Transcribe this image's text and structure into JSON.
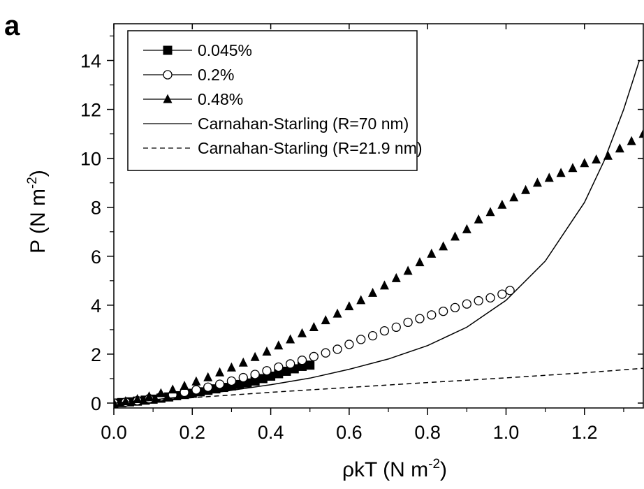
{
  "chart_data": {
    "type": "scatter",
    "panel_label": "a",
    "xlabel": {
      "base": "ρkT (N m",
      "sup": "-2",
      "tail": ")"
    },
    "ylabel": {
      "base": "P (N m",
      "sup": "-2",
      "tail": ")"
    },
    "xlim": [
      0.0,
      1.35
    ],
    "ylim": [
      -0.2,
      15.5
    ],
    "xticks": [
      0.0,
      0.2,
      0.4,
      0.6,
      0.8,
      1.0,
      1.2
    ],
    "xtick_labels": [
      "0.0",
      "0.2",
      "0.4",
      "0.6",
      "0.8",
      "1.0",
      "1.2"
    ],
    "yticks": [
      0,
      2,
      4,
      6,
      8,
      10,
      12,
      14
    ],
    "ytick_labels": [
      "0",
      "2",
      "4",
      "6",
      "8",
      "10",
      "12",
      "14"
    ],
    "grid": false,
    "legend_position": "top-left",
    "series": [
      {
        "name": "0.045%",
        "kind": "markers",
        "marker": "square-filled",
        "x": [
          0.0,
          0.02,
          0.04,
          0.06,
          0.08,
          0.1,
          0.12,
          0.14,
          0.16,
          0.18,
          0.2,
          0.22,
          0.24,
          0.26,
          0.28,
          0.3,
          0.32,
          0.34,
          0.36,
          0.38,
          0.4,
          0.42,
          0.44,
          0.46,
          0.48,
          0.5
        ],
        "y": [
          0.0,
          0.02,
          0.05,
          0.08,
          0.12,
          0.16,
          0.2,
          0.25,
          0.3,
          0.35,
          0.4,
          0.46,
          0.52,
          0.58,
          0.64,
          0.7,
          0.76,
          0.82,
          0.9,
          1.0,
          1.1,
          1.2,
          1.3,
          1.4,
          1.5,
          1.55
        ]
      },
      {
        "name": "0.2%",
        "kind": "markers",
        "marker": "circle-open",
        "x": [
          0.0,
          0.03,
          0.06,
          0.09,
          0.12,
          0.15,
          0.18,
          0.21,
          0.24,
          0.27,
          0.3,
          0.33,
          0.36,
          0.39,
          0.42,
          0.45,
          0.48,
          0.51,
          0.54,
          0.57,
          0.6,
          0.63,
          0.66,
          0.69,
          0.72,
          0.75,
          0.78,
          0.81,
          0.84,
          0.87,
          0.9,
          0.93,
          0.96,
          0.99,
          1.01
        ],
        "y": [
          0.0,
          0.04,
          0.1,
          0.18,
          0.26,
          0.34,
          0.44,
          0.54,
          0.65,
          0.77,
          0.9,
          1.04,
          1.17,
          1.32,
          1.47,
          1.6,
          1.75,
          1.9,
          2.05,
          2.2,
          2.4,
          2.6,
          2.75,
          2.95,
          3.1,
          3.3,
          3.45,
          3.6,
          3.75,
          3.9,
          4.05,
          4.18,
          4.3,
          4.45,
          4.6
        ]
      },
      {
        "name": "0.48%",
        "kind": "markers",
        "marker": "triangle-filled",
        "x": [
          0.0,
          0.03,
          0.06,
          0.09,
          0.12,
          0.15,
          0.18,
          0.21,
          0.24,
          0.27,
          0.3,
          0.33,
          0.36,
          0.39,
          0.42,
          0.45,
          0.48,
          0.51,
          0.54,
          0.57,
          0.6,
          0.63,
          0.66,
          0.69,
          0.72,
          0.75,
          0.78,
          0.81,
          0.84,
          0.87,
          0.9,
          0.93,
          0.96,
          0.99,
          1.02,
          1.05,
          1.08,
          1.11,
          1.14,
          1.17,
          1.2,
          1.23,
          1.26,
          1.29,
          1.32,
          1.35
        ],
        "y": [
          0.0,
          0.07,
          0.16,
          0.27,
          0.4,
          0.55,
          0.7,
          0.88,
          1.05,
          1.25,
          1.45,
          1.65,
          1.88,
          2.1,
          2.35,
          2.6,
          2.85,
          3.1,
          3.38,
          3.65,
          3.95,
          4.2,
          4.5,
          4.8,
          5.1,
          5.4,
          5.75,
          6.1,
          6.4,
          6.8,
          7.1,
          7.5,
          7.8,
          8.1,
          8.4,
          8.7,
          9.0,
          9.2,
          9.4,
          9.6,
          9.8,
          9.95,
          10.1,
          10.4,
          10.7,
          11.0
        ]
      },
      {
        "name": "Carnahan-Starling (R=70 nm)",
        "kind": "line",
        "dash": "solid",
        "x": [
          0.0,
          0.1,
          0.2,
          0.3,
          0.4,
          0.5,
          0.6,
          0.7,
          0.8,
          0.9,
          1.0,
          1.1,
          1.2,
          1.25,
          1.3,
          1.34
        ],
        "y": [
          0.0,
          0.13,
          0.3,
          0.52,
          0.75,
          1.02,
          1.38,
          1.8,
          2.35,
          3.1,
          4.2,
          5.8,
          8.2,
          9.9,
          12.0,
          14.0
        ]
      },
      {
        "name": "Carnahan-Starling (R=21.9 nm)",
        "kind": "line",
        "dash": "dashed",
        "x": [
          0.0,
          0.2,
          0.4,
          0.6,
          0.8,
          1.0,
          1.2,
          1.35
        ],
        "y": [
          0.0,
          0.22,
          0.44,
          0.64,
          0.84,
          1.03,
          1.24,
          1.42
        ]
      }
    ]
  }
}
